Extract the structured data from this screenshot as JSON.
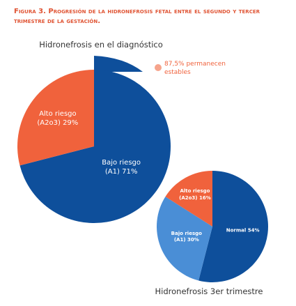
{
  "figure_title": "Figura 3. Progresión de la hidronefrosis fetal entre el segundo y tercer trimestre de la gestación.",
  "chart_data": [
    {
      "type": "pie",
      "title": "Hidronefrosis en el diagnóstico",
      "categories": [
        "Bajo riesgo (A1)",
        "Alto riesgo (A2o3)"
      ],
      "values": [
        71,
        29
      ],
      "value_labels": [
        "71%",
        "29%"
      ],
      "colors": [
        "#0e4f9b",
        "#f0623c"
      ],
      "annotation": "87,5% permanecen estables"
    },
    {
      "type": "pie",
      "title": "Hidronefrosis 3er trimestre",
      "categories": [
        "Normal",
        "Bajo riesgo (A1)",
        "Alto riesgo (A2o3)"
      ],
      "values": [
        54,
        30,
        16
      ],
      "value_labels": [
        "54%",
        "30%",
        "16%"
      ],
      "colors": [
        "#0e4f9b",
        "#4a8ed6",
        "#f0623c"
      ]
    }
  ]
}
